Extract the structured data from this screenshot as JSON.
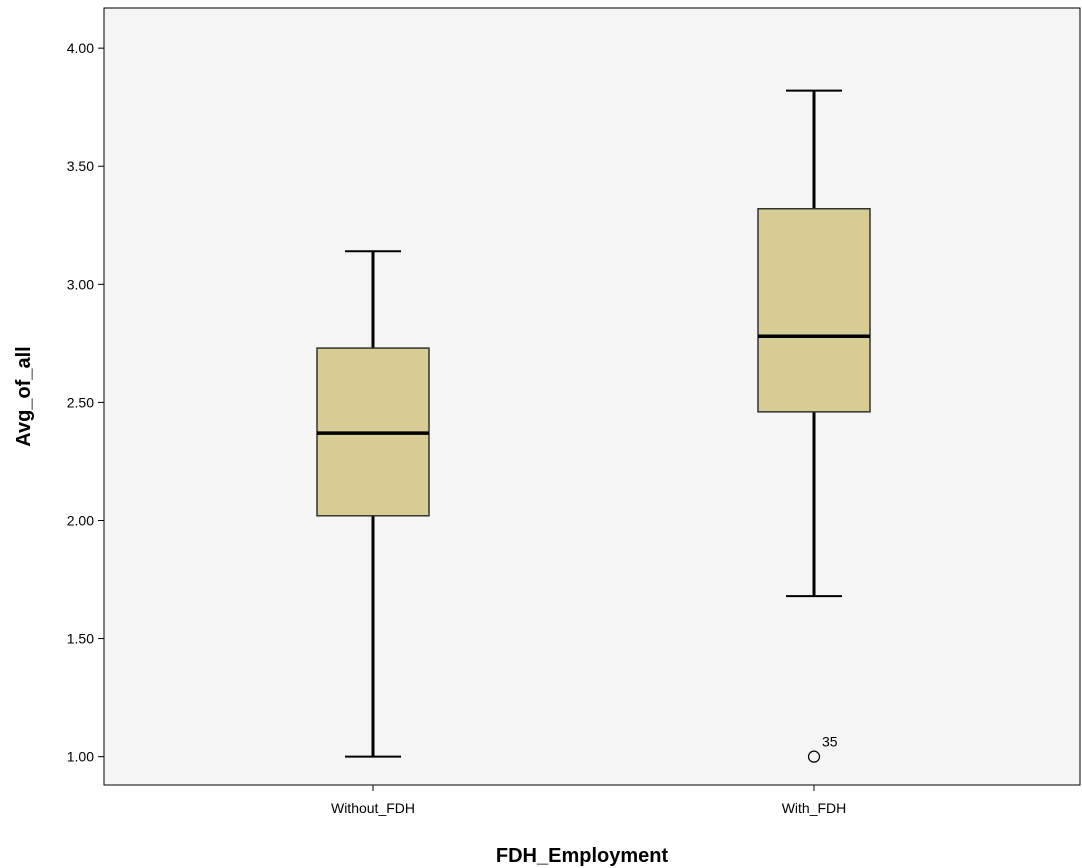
{
  "chart_data": {
    "type": "boxplot",
    "title": "",
    "xlabel": "FDH_Employment",
    "ylabel": "Avg_of_all",
    "ylim": [
      0.88,
      4.17
    ],
    "yticks": [
      "1.00",
      "1.50",
      "2.00",
      "2.50",
      "3.00",
      "3.50",
      "4.00"
    ],
    "grid": false,
    "categories": [
      "Without_FDH",
      "With_FDH"
    ],
    "boxes": [
      {
        "category": "Without_FDH",
        "whisker_low": 1.0,
        "q1": 2.02,
        "median": 2.37,
        "q3": 2.73,
        "whisker_high": 3.14,
        "outliers": []
      },
      {
        "category": "With_FDH",
        "whisker_low": 1.68,
        "q1": 2.46,
        "median": 2.78,
        "q3": 3.32,
        "whisker_high": 3.82,
        "outliers": [
          {
            "value": 1.0,
            "label": "35"
          }
        ]
      }
    ],
    "colors": {
      "plot_background": "#f5f5f5",
      "box_fill": "#d6cc94",
      "stroke": "#000000"
    }
  }
}
